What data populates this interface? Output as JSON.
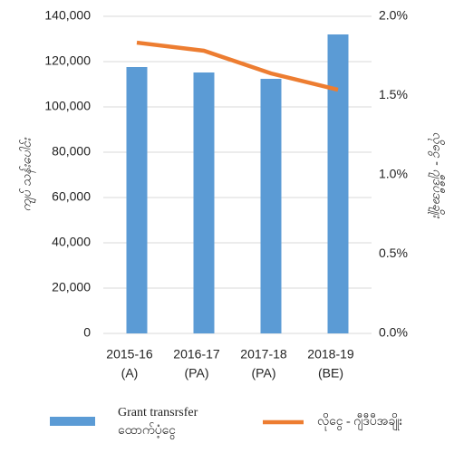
{
  "chart_data": {
    "type": "bar_line",
    "categories": [
      [
        "2015-16",
        "(A)"
      ],
      [
        "2016-17",
        "(PA)"
      ],
      [
        "2017-18",
        "(PA)"
      ],
      [
        "2018-19",
        "(BE)"
      ]
    ],
    "ylabel": "ကျပ် သန်းပေါင်း",
    "y2label": "လိုငွေ - ဂျီဒီပီအချိုး",
    "ylim": [
      0,
      140000
    ],
    "yticks": [
      0,
      {
        "value": 20000,
        "label": "20,000"
      },
      {
        "value": 40000,
        "label": "40,000"
      },
      {
        "value": 60000,
        "label": "60,000"
      },
      {
        "value": 80000,
        "label": "80,000"
      },
      {
        "value": 100000,
        "label": "100,000"
      },
      {
        "value": 120000,
        "label": "120,000"
      },
      {
        "value": 140000,
        "label": "140,000"
      }
    ],
    "y2lim": [
      0,
      2.0
    ],
    "y2ticks": [
      {
        "value": 0,
        "label": "0.0%"
      },
      {
        "value": 0.5,
        "label": "0.5%"
      },
      {
        "value": 1.0,
        "label": "1.0%"
      },
      {
        "value": 1.5,
        "label": "1.5%"
      },
      {
        "value": 2.0,
        "label": "2.0%"
      }
    ],
    "grid": true,
    "legend": "bottom",
    "series": [
      {
        "name": [
          "Grant transrsfer",
          "ထောက်ပံ့ငွေ"
        ],
        "type": "bar",
        "color": "#5b9bd5",
        "values": [
          117600,
          115200,
          112400,
          132000
        ]
      },
      {
        "name": [
          "လိုငွေ - ဂျီဒီပီအချိုး"
        ],
        "type": "line",
        "axis": "y2",
        "color": "#ed7d31",
        "values": [
          1.834,
          1.783,
          1.64,
          1.537
        ]
      }
    ]
  }
}
